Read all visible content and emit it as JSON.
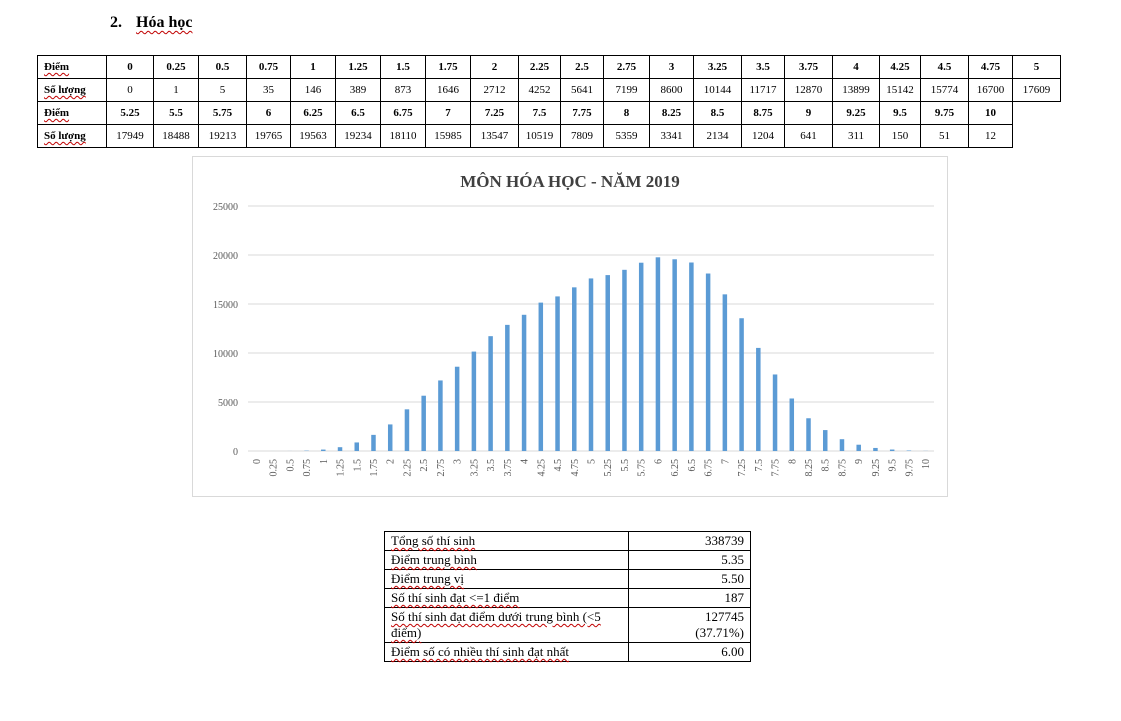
{
  "section": {
    "number": "2.",
    "title": "Hóa học"
  },
  "score_table": {
    "row1_label": "Điểm",
    "row2_label": "Số lượng",
    "part1_points": [
      "0",
      "0.25",
      "0.5",
      "0.75",
      "1",
      "1.25",
      "1.5",
      "1.75",
      "2",
      "2.25",
      "2.5",
      "2.75",
      "3",
      "3.25",
      "3.5",
      "3.75",
      "4",
      "4.25",
      "4.5",
      "4.75",
      "5"
    ],
    "part1_counts": [
      "0",
      "1",
      "5",
      "35",
      "146",
      "389",
      "873",
      "1646",
      "2712",
      "4252",
      "5641",
      "7199",
      "8600",
      "10144",
      "11717",
      "12870",
      "13899",
      "15142",
      "15774",
      "16700",
      "17609"
    ],
    "part2_points": [
      "5.25",
      "5.5",
      "5.75",
      "6",
      "6.25",
      "6.5",
      "6.75",
      "7",
      "7.25",
      "7.5",
      "7.75",
      "8",
      "8.25",
      "8.5",
      "8.75",
      "9",
      "9.25",
      "9.5",
      "9.75",
      "10"
    ],
    "part2_counts": [
      "17949",
      "18488",
      "19213",
      "19765",
      "19563",
      "19234",
      "18110",
      "15985",
      "13547",
      "10519",
      "7809",
      "5359",
      "3341",
      "2134",
      "1204",
      "641",
      "311",
      "150",
      "51",
      "12"
    ]
  },
  "chart_data": {
    "type": "bar",
    "title": "MÔN HÓA HỌC - NĂM 2019",
    "categories": [
      "0",
      "0.25",
      "0.5",
      "0.75",
      "1",
      "1.25",
      "1.5",
      "1.75",
      "2",
      "2.25",
      "2.5",
      "2.75",
      "3",
      "3.25",
      "3.5",
      "3.75",
      "4",
      "4.25",
      "4.5",
      "4.75",
      "5",
      "5.25",
      "5.5",
      "5.75",
      "6",
      "6.25",
      "6.5",
      "6.75",
      "7",
      "7.25",
      "7.5",
      "7.75",
      "8",
      "8.25",
      "8.5",
      "8.75",
      "9",
      "9.25",
      "9.5",
      "9.75",
      "10"
    ],
    "values": [
      0,
      1,
      5,
      35,
      146,
      389,
      873,
      1646,
      2712,
      4252,
      5641,
      7199,
      8600,
      10144,
      11717,
      12870,
      13899,
      15142,
      15774,
      16700,
      17609,
      17949,
      18488,
      19213,
      19765,
      19563,
      19234,
      18110,
      15985,
      13547,
      10519,
      7809,
      5359,
      3341,
      2134,
      1204,
      641,
      311,
      150,
      51,
      12
    ],
    "xlabel": "",
    "ylabel": "",
    "ylim": [
      0,
      25000
    ],
    "yticks": [
      "0",
      "5000",
      "10000",
      "15000",
      "20000",
      "25000"
    ],
    "grid": true,
    "bar_color": "#5b9bd5"
  },
  "stats": [
    {
      "label": "Tổng số thí sinh",
      "value": "338739"
    },
    {
      "label": "Điểm trung bình",
      "value": "5.35"
    },
    {
      "label": "Điểm trung vị",
      "value": "5.50"
    },
    {
      "label": "Số thí sinh đạt <=1 điểm",
      "value": "187"
    },
    {
      "label": "Số thí sinh đạt điểm dưới trung bình (<5 điểm)",
      "value": "127745",
      "value2": "(37.71%)"
    },
    {
      "label": "Điểm số có nhiều thí sinh đạt nhất",
      "value": "6.00"
    }
  ]
}
